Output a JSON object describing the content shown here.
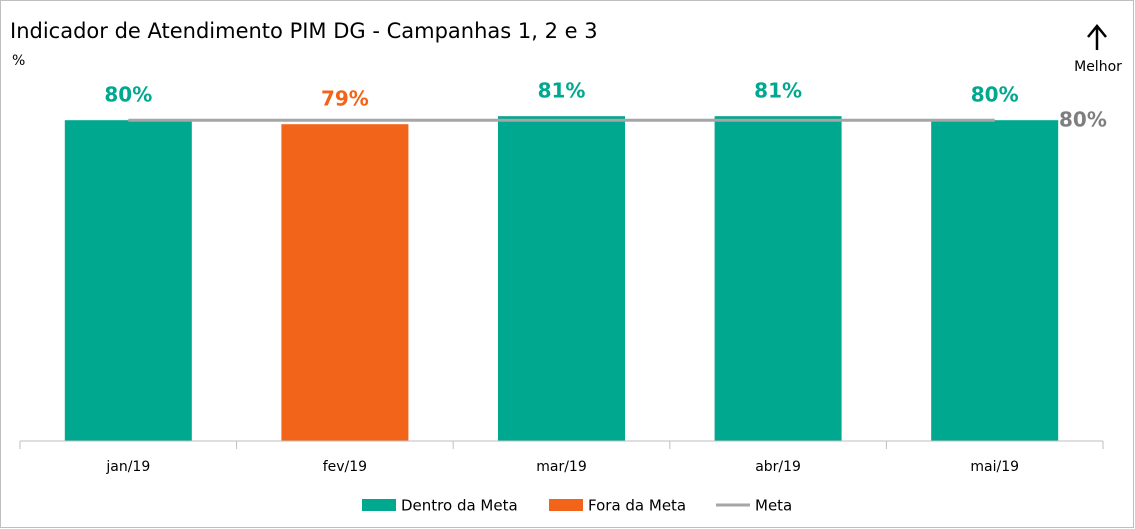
{
  "chart_data": {
    "type": "bar",
    "title": "Indicador de Atendimento PIM DG - Campanhas 1, 2 e 3",
    "y_label": "%",
    "annotation": "Melhor",
    "categories": [
      "jan/19",
      "fev/19",
      "mar/19",
      "abr/19",
      "mai/19"
    ],
    "series": [
      {
        "name": "Dentro da Meta",
        "color": "#00a88f",
        "values": [
          80,
          null,
          81,
          81,
          80
        ],
        "value_labels": [
          "80%",
          null,
          "81%",
          "81%",
          "80%"
        ]
      },
      {
        "name": "Fora da Meta",
        "color": "#f26419",
        "values": [
          null,
          79,
          null,
          null,
          null
        ],
        "value_labels": [
          null,
          "79%",
          null,
          null,
          null
        ]
      },
      {
        "name": "Meta",
        "type": "line",
        "color": "#a6a6a6",
        "values": [
          80,
          80,
          80,
          80,
          80
        ],
        "value_labels": [
          null,
          null,
          null,
          null,
          "80%"
        ]
      }
    ],
    "ylim": [
      0,
      100
    ]
  }
}
